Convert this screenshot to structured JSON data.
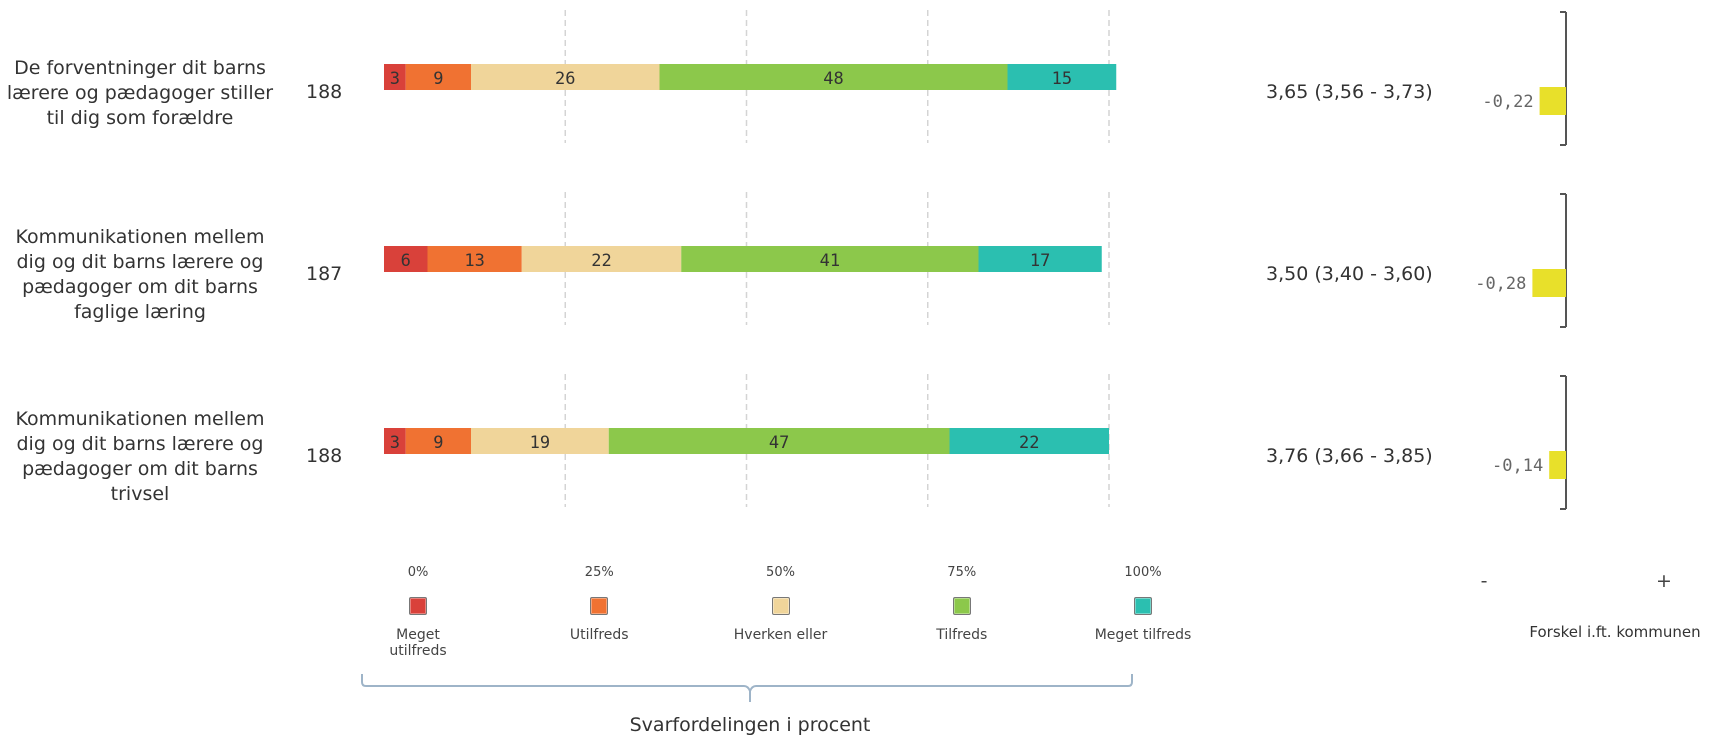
{
  "chart_data": {
    "type": "bar",
    "stacked": true,
    "orientation": "horizontal",
    "title": "",
    "xlabel": "Svarfordelingen i procent",
    "xlim": [
      0,
      100
    ],
    "x_ticks": [
      "0%",
      "25%",
      "50%",
      "75%",
      "100%"
    ],
    "grid": true,
    "legend_placement": "bottom",
    "categories": [
      "De forventninger dit barns lærere og pædagoger stiller til dig som forældre",
      "Kommunikationen mellem dig og dit barns lærere og pædagoger om dit barns faglige læring",
      "Kommunikationen mellem dig og dit barns lærere og pædagoger om dit barns trivsel"
    ],
    "series": [
      {
        "name": "Meget utilfreds",
        "color": "#d9413a",
        "values": [
          3,
          6,
          3
        ]
      },
      {
        "name": "Utilfreds",
        "color": "#f07232",
        "values": [
          9,
          13,
          9
        ]
      },
      {
        "name": "Hverken eller",
        "color": "#f0d59a",
        "values": [
          26,
          22,
          19
        ]
      },
      {
        "name": "Tilfreds",
        "color": "#8cc84b",
        "values": [
          48,
          41,
          47
        ]
      },
      {
        "name": "Meget tilfreds",
        "color": "#2bbfb0",
        "values": [
          15,
          17,
          22
        ]
      }
    ]
  },
  "questions": [
    {
      "lines": [
        "De forventninger dit barns",
        "lærere og pædagoger stiller",
        "til dig som forældre"
      ],
      "n": "188",
      "mean": "3,65 (3,56 - 3,73)",
      "diff": -0.22,
      "diff_label": "-0,22"
    },
    {
      "lines": [
        "Kommunikationen mellem",
        "dig og dit barns lærere og",
        "pædagoger om dit barns",
        "faglige læring"
      ],
      "n": "187",
      "mean": "3,50 (3,40 - 3,60)",
      "diff": -0.28,
      "diff_label": "-0,28"
    },
    {
      "lines": [
        "Kommunikationen mellem",
        "dig og dit barns lærere og",
        "pædagoger om dit barns",
        "trivsel"
      ],
      "n": "188",
      "mean": "3,76 (3,66 - 3,85)",
      "diff": -0.14,
      "diff_label": "-0,14"
    }
  ],
  "legend": [
    {
      "label": "Meget utilfreds",
      "lines": [
        "Meget",
        "utilfreds"
      ],
      "color": "#d9413a"
    },
    {
      "label": "Utilfreds",
      "lines": [
        "Utilfreds"
      ],
      "color": "#f07232"
    },
    {
      "label": "Hverken eller",
      "lines": [
        "Hverken eller"
      ],
      "color": "#f0d59a"
    },
    {
      "label": "Tilfreds",
      "lines": [
        "Tilfreds"
      ],
      "color": "#8cc84b"
    },
    {
      "label": "Meget tilfreds",
      "lines": [
        "Meget tilfreds"
      ],
      "color": "#2bbfb0"
    }
  ],
  "diff_chart": {
    "xlabel": "Forskel i.ft. kommunen",
    "minus_label": "-",
    "plus_label": "+",
    "bar_color": "#e8e02a"
  },
  "colors": {
    "grid": "#d4d4d4",
    "brace": "#9eb4c8",
    "axis": "#555555"
  }
}
